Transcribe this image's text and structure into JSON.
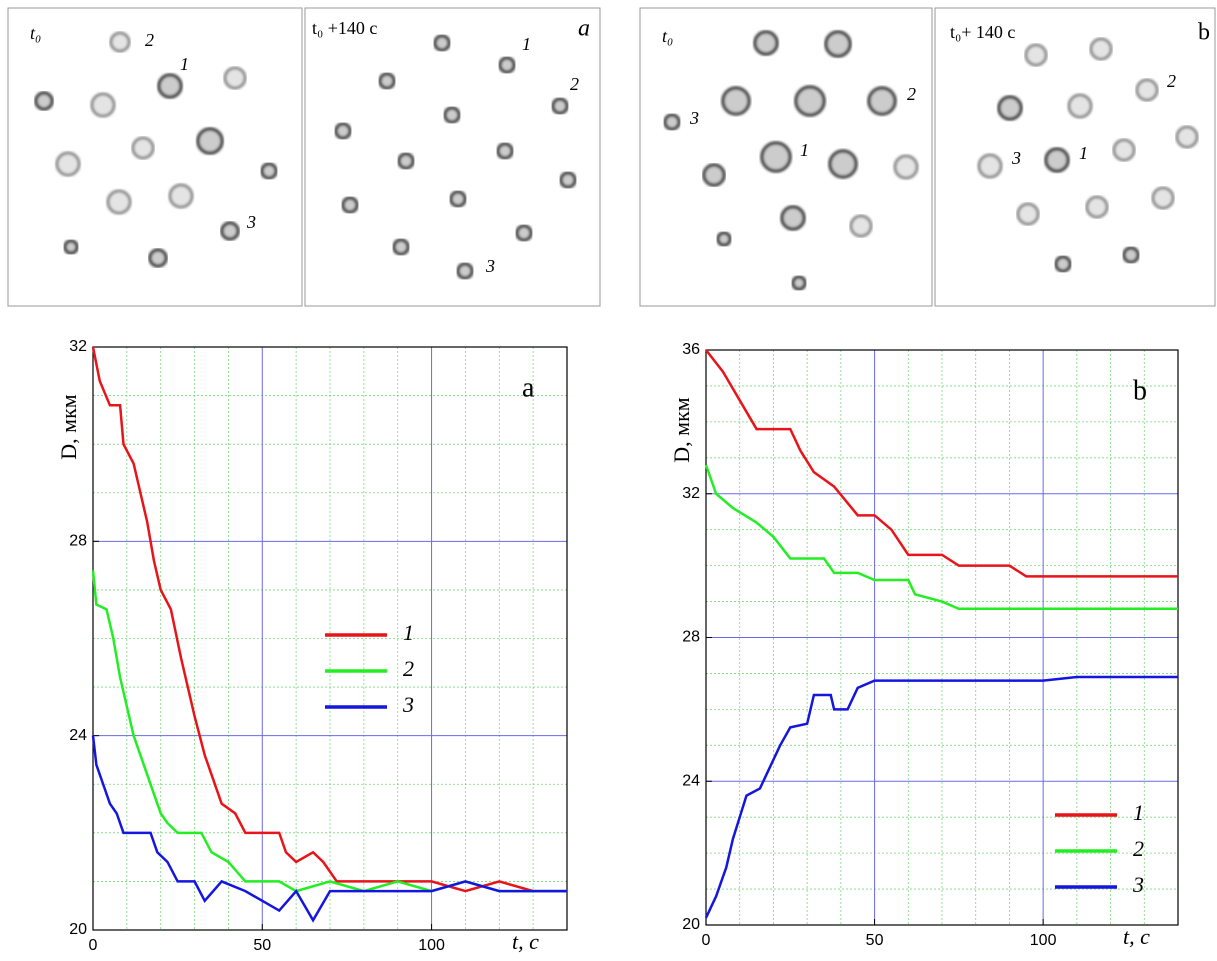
{
  "micrographs": [
    {
      "panel": "a",
      "frames": [
        {
          "time": "t₀",
          "labels": [
            "2",
            "1",
            "3"
          ]
        },
        {
          "time": "t₀ +140 c",
          "labels": [
            "1",
            "2",
            "3"
          ]
        }
      ]
    },
    {
      "panel": "b",
      "frames": [
        {
          "time": "t₀",
          "labels": [
            "3",
            "1",
            "2"
          ]
        },
        {
          "time": "t₀+ 140 c",
          "labels": [
            "2",
            "3",
            "1"
          ]
        }
      ]
    }
  ],
  "chart_data": [
    {
      "type": "line",
      "panel": "a",
      "xlabel": "t, c",
      "ylabel": "D, мкм",
      "xlim": [
        0,
        140
      ],
      "xticks": [
        0,
        50,
        100
      ],
      "ylim": [
        20,
        32
      ],
      "yticks": [
        20,
        24,
        28,
        32
      ],
      "xminorticks": [
        10,
        20,
        30,
        40,
        60,
        70,
        80,
        90,
        110,
        120,
        130
      ],
      "yminorticks": [
        21,
        22,
        23,
        25,
        26,
        27,
        29,
        30,
        31
      ],
      "grid": true,
      "legend": "center right",
      "series": [
        {
          "name": "1",
          "color": "#e8141a",
          "x": [
            0,
            2,
            5,
            8,
            9,
            12,
            14,
            16,
            18,
            20,
            23,
            26,
            28,
            30,
            33,
            35,
            38,
            42,
            45,
            55,
            57,
            60,
            65,
            68,
            72,
            80,
            90,
            100,
            110,
            120,
            130,
            140
          ],
          "values": [
            32,
            31.3,
            30.8,
            30.8,
            30,
            29.6,
            29,
            28.4,
            27.6,
            27,
            26.6,
            25.6,
            25,
            24.4,
            23.6,
            23.2,
            22.6,
            22.4,
            22,
            22,
            21.6,
            21.4,
            21.6,
            21.4,
            21,
            21,
            21,
            21,
            20.8,
            21,
            20.8,
            20.8
          ]
        },
        {
          "name": "2",
          "color": "#22ee22",
          "x": [
            0,
            1,
            4,
            6,
            8,
            10,
            12,
            14,
            16,
            18,
            20,
            22,
            25,
            32,
            35,
            40,
            45,
            55,
            60,
            70,
            80,
            90,
            100,
            110,
            120,
            130,
            140
          ],
          "values": [
            27.4,
            26.7,
            26.6,
            26,
            25.2,
            24.6,
            24,
            23.6,
            23.2,
            22.8,
            22.4,
            22.2,
            22,
            22,
            21.6,
            21.4,
            21,
            21,
            20.8,
            21,
            20.8,
            21,
            20.8,
            21,
            20.8,
            20.8,
            20.8
          ]
        },
        {
          "name": "3",
          "color": "#1515e0",
          "x": [
            0,
            1,
            3,
            5,
            7,
            9,
            17,
            19,
            22,
            25,
            30,
            33,
            38,
            45,
            50,
            55,
            60,
            65,
            70,
            80,
            90,
            100,
            110,
            120,
            130,
            140
          ],
          "values": [
            24,
            23.4,
            23,
            22.6,
            22.4,
            22,
            22,
            21.6,
            21.4,
            21,
            21,
            20.6,
            21,
            20.8,
            20.6,
            20.4,
            20.8,
            20.2,
            20.8,
            20.8,
            20.8,
            20.8,
            21,
            20.8,
            20.8,
            20.8
          ]
        }
      ]
    },
    {
      "type": "line",
      "panel": "b",
      "xlabel": "t, c",
      "ylabel": "D, мкм",
      "xlim": [
        0,
        140
      ],
      "xticks": [
        0,
        50,
        100
      ],
      "ylim": [
        20,
        36
      ],
      "yticks": [
        20,
        24,
        28,
        32,
        36
      ],
      "xminorticks": [
        10,
        20,
        30,
        40,
        60,
        70,
        80,
        90,
        110,
        120,
        130
      ],
      "yminorticks": [
        21,
        22,
        23,
        25,
        26,
        27,
        29,
        30,
        31,
        33,
        34,
        35
      ],
      "grid": true,
      "legend": "lower right",
      "series": [
        {
          "name": "1",
          "color": "#e8141a",
          "x": [
            0,
            5,
            10,
            15,
            25,
            28,
            32,
            38,
            45,
            50,
            55,
            60,
            70,
            75,
            90,
            95,
            140
          ],
          "values": [
            36,
            35.4,
            34.6,
            33.8,
            33.8,
            33.2,
            32.6,
            32.2,
            31.4,
            31.4,
            31,
            30.3,
            30.3,
            30,
            30,
            29.7,
            29.7
          ]
        },
        {
          "name": "2",
          "color": "#22ee22",
          "x": [
            0,
            3,
            8,
            15,
            20,
            25,
            35,
            38,
            45,
            50,
            60,
            62,
            70,
            75,
            140
          ],
          "values": [
            32.8,
            32,
            31.6,
            31.2,
            30.8,
            30.2,
            30.2,
            29.8,
            29.8,
            29.6,
            29.6,
            29.2,
            29,
            28.8,
            28.8
          ]
        },
        {
          "name": "3",
          "color": "#1515e0",
          "x": [
            0,
            3,
            6,
            8,
            10,
            12,
            16,
            18,
            22,
            25,
            30,
            32,
            37,
            38,
            42,
            45,
            50,
            70,
            80,
            100,
            110,
            120,
            140
          ],
          "values": [
            20.2,
            20.8,
            21.6,
            22.4,
            23,
            23.6,
            23.8,
            24.2,
            25,
            25.5,
            25.6,
            26.4,
            26.4,
            26,
            26,
            26.6,
            26.8,
            26.8,
            26.8,
            26.8,
            26.9,
            26.9,
            26.9
          ]
        }
      ]
    }
  ]
}
